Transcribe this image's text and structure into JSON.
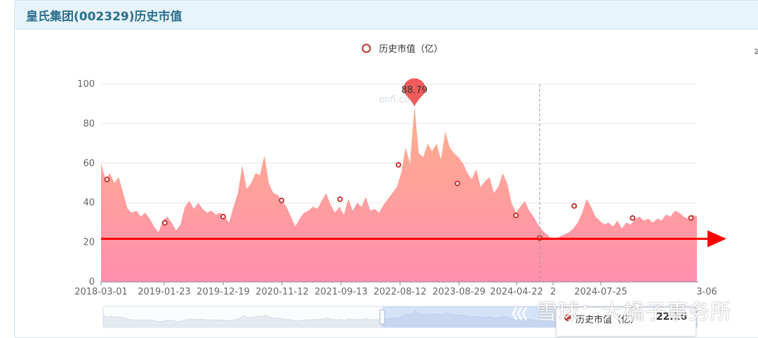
{
  "panel": {
    "title": "皇氏集团(002329)历史市值"
  },
  "side_glyph": "≥",
  "colors": {
    "header_bg": "#e7f4fa",
    "title": "#2c6e8e",
    "area_top": "#ffb08c",
    "area_bottom": "#ff8fae",
    "marker": "#c23531",
    "red_line": "#ff0000",
    "pin": "#ef5b5b"
  },
  "chart_data": {
    "type": "area",
    "legend": [
      "历史市值（亿）"
    ],
    "legend_position": "top-center",
    "x_tick_labels": [
      "2018-03-01",
      "2019-01-23",
      "2019-12-19",
      "2020-11-12",
      "2021-09-13",
      "2022-08-12",
      "2023-08-29",
      "2024-04-22",
      "2",
      "2024-07-25",
      "3-06"
    ],
    "y_ticks": [
      0,
      20,
      40,
      60,
      80,
      100
    ],
    "ylim": [
      0,
      100
    ],
    "grid": true,
    "series": [
      {
        "name": "历史市值（亿）",
        "values": [
          60,
          52,
          55,
          50,
          53,
          45,
          37,
          35,
          36,
          33,
          35,
          32,
          28,
          25,
          31,
          33,
          30,
          26,
          29,
          38,
          41,
          37,
          40,
          37,
          35,
          36,
          34,
          35,
          33,
          30,
          38,
          45,
          59,
          47,
          50,
          55,
          54,
          64,
          50,
          45,
          44,
          41,
          38,
          33,
          28,
          32,
          35,
          36,
          38,
          37,
          41,
          45,
          39,
          35,
          38,
          34,
          42,
          36,
          40,
          38,
          43,
          36,
          37,
          35,
          39,
          42,
          45,
          48,
          55,
          68,
          60,
          88.79,
          65,
          63,
          70,
          66,
          70,
          62,
          76,
          68,
          65,
          63,
          60,
          55,
          52,
          57,
          48,
          51,
          53,
          45,
          48,
          55,
          50,
          40,
          35,
          38,
          41,
          36,
          33,
          29,
          26,
          24,
          22,
          22.16,
          23,
          24,
          25,
          27,
          30,
          35,
          42,
          38,
          33,
          31,
          29,
          30,
          28,
          31,
          27,
          30,
          29,
          32,
          33,
          31,
          32,
          30,
          32,
          31,
          34,
          33,
          36,
          35,
          33,
          32,
          34,
          33
        ]
      }
    ],
    "markers": [
      51.8,
      29.9,
      33.0,
      41.2,
      41.8,
      59.2,
      49.8,
      33.6,
      22.16,
      38.4,
      32.3,
      32.3
    ],
    "max_pin": {
      "label": "88.79",
      "value": 88.79
    },
    "reference_line": {
      "value": 22.16,
      "color": "#ff0000"
    },
    "crosshair_value": 22.16,
    "watermark_text": "enfi.com",
    "tooltip": {
      "name": "历史市值（亿）",
      "value": "22.16"
    },
    "data_zoom": {
      "start": 0.47,
      "end": 1.0
    }
  },
  "watermark": {
    "text": "雪球：大橘子事务所"
  }
}
